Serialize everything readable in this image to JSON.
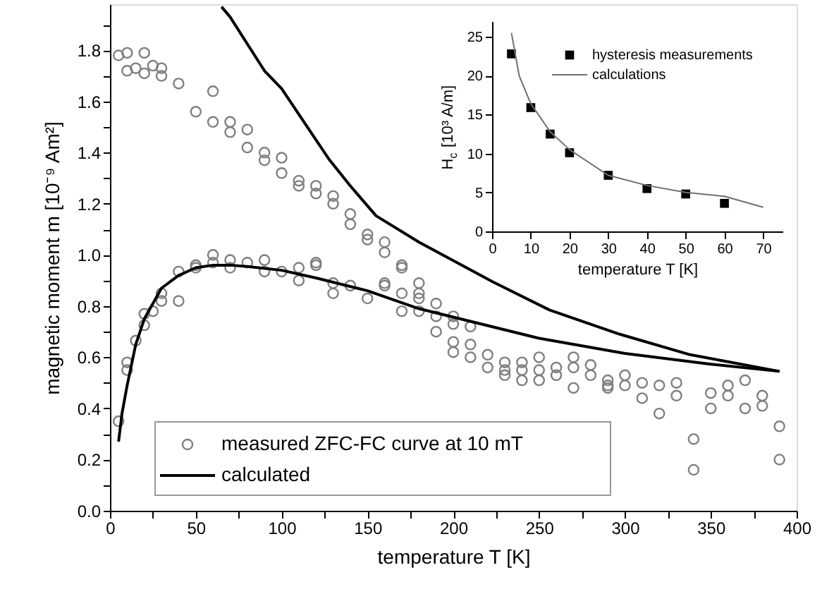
{
  "chart_data": [
    {
      "type": "scatter",
      "xlabel": "temperature T [K]",
      "ylabel": "magnetic moment m [10⁻⁹ Am²]",
      "xlim": [
        0,
        400
      ],
      "ylim": [
        0,
        1.98
      ],
      "xticks": [
        0,
        {
          "value": 25,
          "label": null
        },
        50,
        {
          "value": 75,
          "label": null
        },
        100,
        {
          "value": 125,
          "label": null
        },
        150,
        {
          "value": 175,
          "label": null
        },
        200,
        {
          "value": 225,
          "label": null
        },
        250,
        {
          "value": 275,
          "label": null
        },
        300,
        {
          "value": 325,
          "label": null
        },
        350,
        {
          "value": 375,
          "label": null
        },
        400
      ],
      "yticks": [
        {
          "value": 0,
          "label": "0.0"
        },
        {
          "value": 0.1,
          "label": null
        },
        0.2,
        {
          "value": 0.3,
          "label": null
        },
        0.4,
        {
          "value": 0.5,
          "label": null
        },
        0.6,
        {
          "value": 0.7,
          "label": null
        },
        0.8,
        {
          "value": 0.9,
          "label": null
        },
        {
          "value": 1,
          "label": "1.0"
        },
        {
          "value": 1.1,
          "label": null
        },
        1.2,
        {
          "value": 1.3,
          "label": null
        },
        1.4,
        {
          "value": 1.5,
          "label": null
        },
        1.6,
        {
          "value": 1.7,
          "label": null
        },
        1.8,
        {
          "value": 1.9,
          "label": null
        }
      ],
      "legend": "bottom left",
      "series": [
        {
          "name": "measured ZFC-FC curve at 10 mT",
          "marker": "circle",
          "color": "#808080",
          "x": [
            5,
            5,
            10,
            10,
            10,
            10,
            15,
            15,
            20,
            20,
            20,
            20,
            25,
            25,
            30,
            30,
            30,
            30,
            40,
            40,
            40,
            50,
            50,
            50,
            60,
            60,
            60,
            60,
            70,
            70,
            70,
            70,
            80,
            80,
            80,
            90,
            90,
            90,
            90,
            100,
            100,
            100,
            110,
            110,
            110,
            110,
            120,
            120,
            120,
            120,
            130,
            130,
            130,
            130,
            140,
            140,
            140,
            150,
            150,
            150,
            160,
            160,
            160,
            160,
            170,
            170,
            170,
            170,
            180,
            180,
            180,
            180,
            190,
            190,
            190,
            200,
            200,
            200,
            200,
            210,
            210,
            210,
            220,
            220,
            230,
            230,
            230,
            240,
            240,
            240,
            250,
            250,
            250,
            260,
            260,
            270,
            270,
            270,
            280,
            280,
            290,
            290,
            290,
            300,
            300,
            310,
            310,
            320,
            320,
            330,
            330,
            340,
            340,
            350,
            350,
            360,
            360,
            370,
            370,
            380,
            380,
            390,
            390
          ],
          "values": [
            1.78,
            0.35,
            1.79,
            1.72,
            0.58,
            0.55,
            1.73,
            0.665,
            1.79,
            1.71,
            0.77,
            0.725,
            1.74,
            0.78,
            1.73,
            1.7,
            0.85,
            0.82,
            1.67,
            0.935,
            0.82,
            1.56,
            0.96,
            0.95,
            1.64,
            1.52,
            1.0,
            0.97,
            1.52,
            1.48,
            0.98,
            0.95,
            1.49,
            1.42,
            0.97,
            1.4,
            1.37,
            0.98,
            0.935,
            1.38,
            1.32,
            0.935,
            1.29,
            1.27,
            0.95,
            0.9,
            1.27,
            1.24,
            0.97,
            0.96,
            1.23,
            1.2,
            0.89,
            0.85,
            1.16,
            1.12,
            0.88,
            1.08,
            1.06,
            0.83,
            1.05,
            1.01,
            0.89,
            0.88,
            0.96,
            0.95,
            0.85,
            0.78,
            0.89,
            0.85,
            0.83,
            0.78,
            0.81,
            0.76,
            0.7,
            0.76,
            0.73,
            0.66,
            0.62,
            0.72,
            0.65,
            0.6,
            0.61,
            0.56,
            0.58,
            0.55,
            0.53,
            0.58,
            0.55,
            0.51,
            0.6,
            0.55,
            0.51,
            0.56,
            0.53,
            0.6,
            0.56,
            0.48,
            0.57,
            0.53,
            0.51,
            0.49,
            0.48,
            0.53,
            0.49,
            0.5,
            0.44,
            0.49,
            0.38,
            0.5,
            0.45,
            0.28,
            0.16,
            0.46,
            0.4,
            0.49,
            0.45,
            0.51,
            0.4,
            0.45,
            0.41,
            0.33,
            0.2
          ]
        },
        {
          "name": "calculated",
          "type": "line",
          "color": "#000000",
          "x": [
            5,
            7,
            10,
            15,
            20,
            30,
            40,
            50,
            60,
            70,
            80,
            100,
            120,
            150,
            180,
            200,
            250,
            300,
            350,
            390
          ],
          "values": [
            0.27,
            0.38,
            0.49,
            0.65,
            0.75,
            0.87,
            0.92,
            0.95,
            0.96,
            0.96,
            0.955,
            0.94,
            0.91,
            0.86,
            0.79,
            0.757,
            0.674,
            0.615,
            0.573,
            0.545
          ]
        },
        {
          "type": "line",
          "color": "#000000",
          "x": [
            65,
            70,
            80,
            90,
            100,
            115,
            127.6,
            140,
            155,
            180,
            223,
            256,
            297,
            338,
            390
          ],
          "values": [
            1.97,
            1.93,
            1.825,
            1.72,
            1.65,
            1.5,
            1.374,
            1.27,
            1.153,
            1.05,
            0.895,
            0.785,
            0.69,
            0.61,
            0.545
          ]
        }
      ]
    },
    {
      "type": "scatter",
      "xlabel": "temperature T [K]",
      "ylabel": "H$_{c}$ [10³ A/m]",
      "xlim": [
        0,
        75
      ],
      "ylim": [
        0,
        27
      ],
      "xticks": [
        0,
        10,
        20,
        30,
        40,
        50,
        60,
        70
      ],
      "yticks": [
        0,
        5,
        10,
        15,
        20,
        25
      ],
      "legend": "top right",
      "series": [
        {
          "name": "hysteresis measurements",
          "marker": "square",
          "color": "#000000",
          "x": [
            5,
            10,
            15,
            20,
            30,
            40,
            50,
            60
          ],
          "values": [
            22.8,
            15.9,
            12.5,
            10.1,
            7.2,
            5.5,
            4.8,
            3.6
          ]
        },
        {
          "name": "calculations",
          "type": "line",
          "color": "#707070",
          "x": [
            5,
            7,
            10,
            15,
            20,
            30,
            40,
            50,
            60,
            70
          ],
          "values": [
            25.5,
            20,
            16.4,
            12.8,
            10.5,
            7.2,
            5.9,
            5.0,
            4.5,
            3.1
          ]
        }
      ]
    }
  ]
}
